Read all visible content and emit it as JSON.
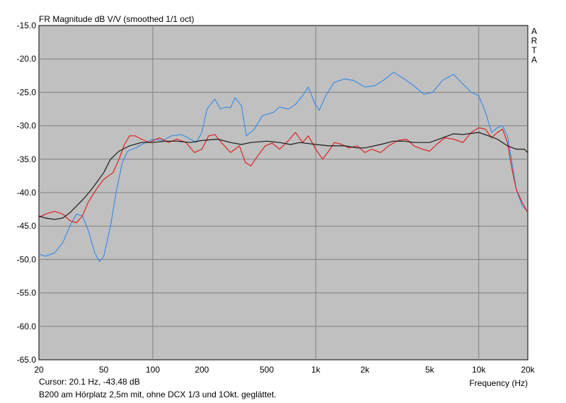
{
  "chart_data": {
    "type": "line",
    "title": "FR Magnitude dB V/V (smoothed 1/1 oct)",
    "xlabel": "Frequency (Hz)",
    "watermark": [
      "A",
      "R",
      "T",
      "A"
    ],
    "x_scale": "log",
    "xlim": [
      20,
      20000
    ],
    "ylim": [
      -65,
      -15
    ],
    "grid": true,
    "x_ticks": [
      {
        "value": 20,
        "label": "20"
      },
      {
        "value": 50,
        "label": "50"
      },
      {
        "value": 100,
        "label": "100"
      },
      {
        "value": 200,
        "label": "200"
      },
      {
        "value": 500,
        "label": "500"
      },
      {
        "value": 1000,
        "label": "1k"
      },
      {
        "value": 2000,
        "label": "2k"
      },
      {
        "value": 5000,
        "label": "5k"
      },
      {
        "value": 10000,
        "label": "10k"
      },
      {
        "value": 20000,
        "label": "20k"
      }
    ],
    "x_gridlines": [
      100,
      1000,
      10000
    ],
    "y_ticks": [
      {
        "value": -15,
        "label": "-15.0"
      },
      {
        "value": -20,
        "label": "-20.0"
      },
      {
        "value": -25,
        "label": "-25.0"
      },
      {
        "value": -30,
        "label": "-30.0"
      },
      {
        "value": -35,
        "label": "-35.0"
      },
      {
        "value": -40,
        "label": "-40.0"
      },
      {
        "value": -45,
        "label": "-45.0"
      },
      {
        "value": -50,
        "label": "-50.0"
      },
      {
        "value": -55,
        "label": "-55.0"
      },
      {
        "value": -60,
        "label": "-60.0"
      },
      {
        "value": -65,
        "label": "-65.0"
      }
    ],
    "colors": {
      "plot_bg": "#c0c0c0",
      "grid": "#808080"
    },
    "series": [
      {
        "color": "#3a8ee6",
        "points": [
          [
            20,
            -49.2
          ],
          [
            22,
            -49.5
          ],
          [
            25,
            -49.0
          ],
          [
            28,
            -47.5
          ],
          [
            31,
            -45.0
          ],
          [
            34,
            -43.2
          ],
          [
            37,
            -43.5
          ],
          [
            40,
            -45.5
          ],
          [
            44,
            -49.0
          ],
          [
            47,
            -50.3
          ],
          [
            50,
            -49.5
          ],
          [
            55,
            -45.0
          ],
          [
            60,
            -39.5
          ],
          [
            65,
            -35.5
          ],
          [
            70,
            -33.8
          ],
          [
            80,
            -33.2
          ],
          [
            90,
            -32.5
          ],
          [
            100,
            -32.0
          ],
          [
            115,
            -32.2
          ],
          [
            130,
            -31.5
          ],
          [
            150,
            -31.3
          ],
          [
            170,
            -32.0
          ],
          [
            185,
            -32.5
          ],
          [
            200,
            -31.0
          ],
          [
            215,
            -27.5
          ],
          [
            240,
            -26.0
          ],
          [
            260,
            -27.5
          ],
          [
            280,
            -27.2
          ],
          [
            300,
            -27.3
          ],
          [
            320,
            -25.8
          ],
          [
            350,
            -27.0
          ],
          [
            375,
            -31.5
          ],
          [
            420,
            -30.5
          ],
          [
            470,
            -28.5
          ],
          [
            550,
            -28.0
          ],
          [
            600,
            -27.2
          ],
          [
            680,
            -27.5
          ],
          [
            750,
            -26.8
          ],
          [
            830,
            -25.5
          ],
          [
            900,
            -24.2
          ],
          [
            980,
            -26.5
          ],
          [
            1050,
            -27.7
          ],
          [
            1150,
            -25.5
          ],
          [
            1300,
            -23.5
          ],
          [
            1500,
            -23.0
          ],
          [
            1700,
            -23.2
          ],
          [
            2000,
            -24.2
          ],
          [
            2300,
            -24.0
          ],
          [
            2600,
            -23.2
          ],
          [
            3000,
            -22.0
          ],
          [
            3400,
            -22.8
          ],
          [
            4000,
            -24.0
          ],
          [
            4600,
            -25.3
          ],
          [
            5200,
            -25.0
          ],
          [
            6000,
            -23.2
          ],
          [
            7000,
            -22.3
          ],
          [
            7800,
            -23.5
          ],
          [
            9000,
            -25.0
          ],
          [
            10000,
            -25.5
          ],
          [
            11000,
            -28.0
          ],
          [
            12000,
            -31.0
          ],
          [
            13000,
            -30.3
          ],
          [
            14000,
            -30.0
          ],
          [
            15000,
            -31.5
          ],
          [
            16000,
            -35.5
          ],
          [
            17000,
            -39.5
          ],
          [
            18500,
            -42.0
          ],
          [
            20000,
            -42.8
          ]
        ]
      },
      {
        "color": "#e02020",
        "points": [
          [
            20,
            -43.7
          ],
          [
            22,
            -43.2
          ],
          [
            25,
            -42.8
          ],
          [
            28,
            -43.2
          ],
          [
            31,
            -44.2
          ],
          [
            34,
            -44.5
          ],
          [
            37,
            -43.5
          ],
          [
            40,
            -41.5
          ],
          [
            45,
            -39.5
          ],
          [
            50,
            -38.0
          ],
          [
            57,
            -37.0
          ],
          [
            62,
            -35.0
          ],
          [
            67,
            -32.8
          ],
          [
            72,
            -31.5
          ],
          [
            78,
            -31.5
          ],
          [
            85,
            -32.0
          ],
          [
            95,
            -32.5
          ],
          [
            110,
            -31.8
          ],
          [
            125,
            -32.5
          ],
          [
            140,
            -32.0
          ],
          [
            160,
            -32.5
          ],
          [
            180,
            -34.0
          ],
          [
            200,
            -33.5
          ],
          [
            220,
            -31.5
          ],
          [
            240,
            -31.3
          ],
          [
            270,
            -32.8
          ],
          [
            300,
            -34.0
          ],
          [
            340,
            -33.0
          ],
          [
            370,
            -35.5
          ],
          [
            400,
            -36.0
          ],
          [
            440,
            -34.5
          ],
          [
            490,
            -33.0
          ],
          [
            540,
            -32.6
          ],
          [
            600,
            -33.5
          ],
          [
            680,
            -32.2
          ],
          [
            750,
            -31.0
          ],
          [
            830,
            -32.5
          ],
          [
            900,
            -31.5
          ],
          [
            1000,
            -33.5
          ],
          [
            1100,
            -35.0
          ],
          [
            1200,
            -33.8
          ],
          [
            1300,
            -32.5
          ],
          [
            1450,
            -32.8
          ],
          [
            1600,
            -33.3
          ],
          [
            1800,
            -33.0
          ],
          [
            2000,
            -34.0
          ],
          [
            2200,
            -33.5
          ],
          [
            2500,
            -34.0
          ],
          [
            2800,
            -33.0
          ],
          [
            3200,
            -32.2
          ],
          [
            3600,
            -32.0
          ],
          [
            4000,
            -33.0
          ],
          [
            4500,
            -33.5
          ],
          [
            5000,
            -33.8
          ],
          [
            5500,
            -32.8
          ],
          [
            6200,
            -31.8
          ],
          [
            7000,
            -32.0
          ],
          [
            8000,
            -32.5
          ],
          [
            9000,
            -31.0
          ],
          [
            10000,
            -30.3
          ],
          [
            11000,
            -30.5
          ],
          [
            12000,
            -31.8
          ],
          [
            13000,
            -31.0
          ],
          [
            14000,
            -30.5
          ],
          [
            15000,
            -32.5
          ],
          [
            16000,
            -36.5
          ],
          [
            17000,
            -39.5
          ],
          [
            18500,
            -41.5
          ],
          [
            20000,
            -43.0
          ]
        ]
      },
      {
        "color": "#1a1a1a",
        "points": [
          [
            20,
            -43.5
          ],
          [
            22,
            -43.8
          ],
          [
            25,
            -44.0
          ],
          [
            28,
            -43.8
          ],
          [
            31,
            -43.0
          ],
          [
            34,
            -42.0
          ],
          [
            38,
            -40.8
          ],
          [
            43,
            -39.2
          ],
          [
            50,
            -37.0
          ],
          [
            55,
            -35.0
          ],
          [
            62,
            -33.8
          ],
          [
            72,
            -33.0
          ],
          [
            85,
            -32.5
          ],
          [
            100,
            -32.5
          ],
          [
            120,
            -32.3
          ],
          [
            140,
            -32.3
          ],
          [
            170,
            -32.5
          ],
          [
            200,
            -32.2
          ],
          [
            250,
            -32.0
          ],
          [
            300,
            -32.5
          ],
          [
            350,
            -32.8
          ],
          [
            400,
            -32.5
          ],
          [
            500,
            -32.3
          ],
          [
            600,
            -32.5
          ],
          [
            700,
            -32.8
          ],
          [
            800,
            -32.5
          ],
          [
            1000,
            -32.8
          ],
          [
            1200,
            -33.0
          ],
          [
            1500,
            -33.0
          ],
          [
            1800,
            -33.3
          ],
          [
            2000,
            -33.3
          ],
          [
            2500,
            -32.8
          ],
          [
            3000,
            -32.3
          ],
          [
            3500,
            -32.3
          ],
          [
            4000,
            -32.5
          ],
          [
            5000,
            -32.5
          ],
          [
            6000,
            -31.8
          ],
          [
            7000,
            -31.2
          ],
          [
            8000,
            -31.3
          ],
          [
            10000,
            -31.0
          ],
          [
            11500,
            -31.5
          ],
          [
            13000,
            -32.0
          ],
          [
            15000,
            -33.0
          ],
          [
            17000,
            -33.5
          ],
          [
            19000,
            -33.5
          ],
          [
            20000,
            -34.0
          ]
        ]
      }
    ]
  },
  "status": {
    "cursor": "Cursor: 20.1 Hz, -43.48 dB",
    "note": "B200 am Hörplatz 2,5m mit, ohne DCX 1/3 und 1Okt. geglättet."
  }
}
